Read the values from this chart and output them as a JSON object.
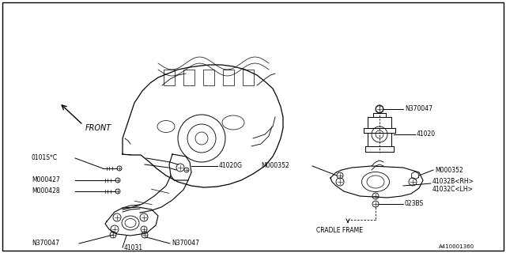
{
  "background_color": "#ffffff",
  "border_color": "#000000",
  "line_color": "#000000",
  "text_color": "#000000",
  "diagram_id": "A410001360",
  "fs": 5.5,
  "labels": {
    "front": "FRONT",
    "41020G": "41020G",
    "41020": "41020",
    "41031": "41031",
    "41032B": "41032B<RH>",
    "41032C": "41032C<LH>",
    "0101SC": "0101S*C",
    "M000427": "M000427",
    "M000428": "M000428",
    "M000352_L": "M000352",
    "M000352_R": "M000352",
    "N370047_top": "N370047",
    "N370047_bl": "N370047",
    "N370047_br": "N370047",
    "023BS": "023BS",
    "cradle": "CRADLE FRAME"
  }
}
